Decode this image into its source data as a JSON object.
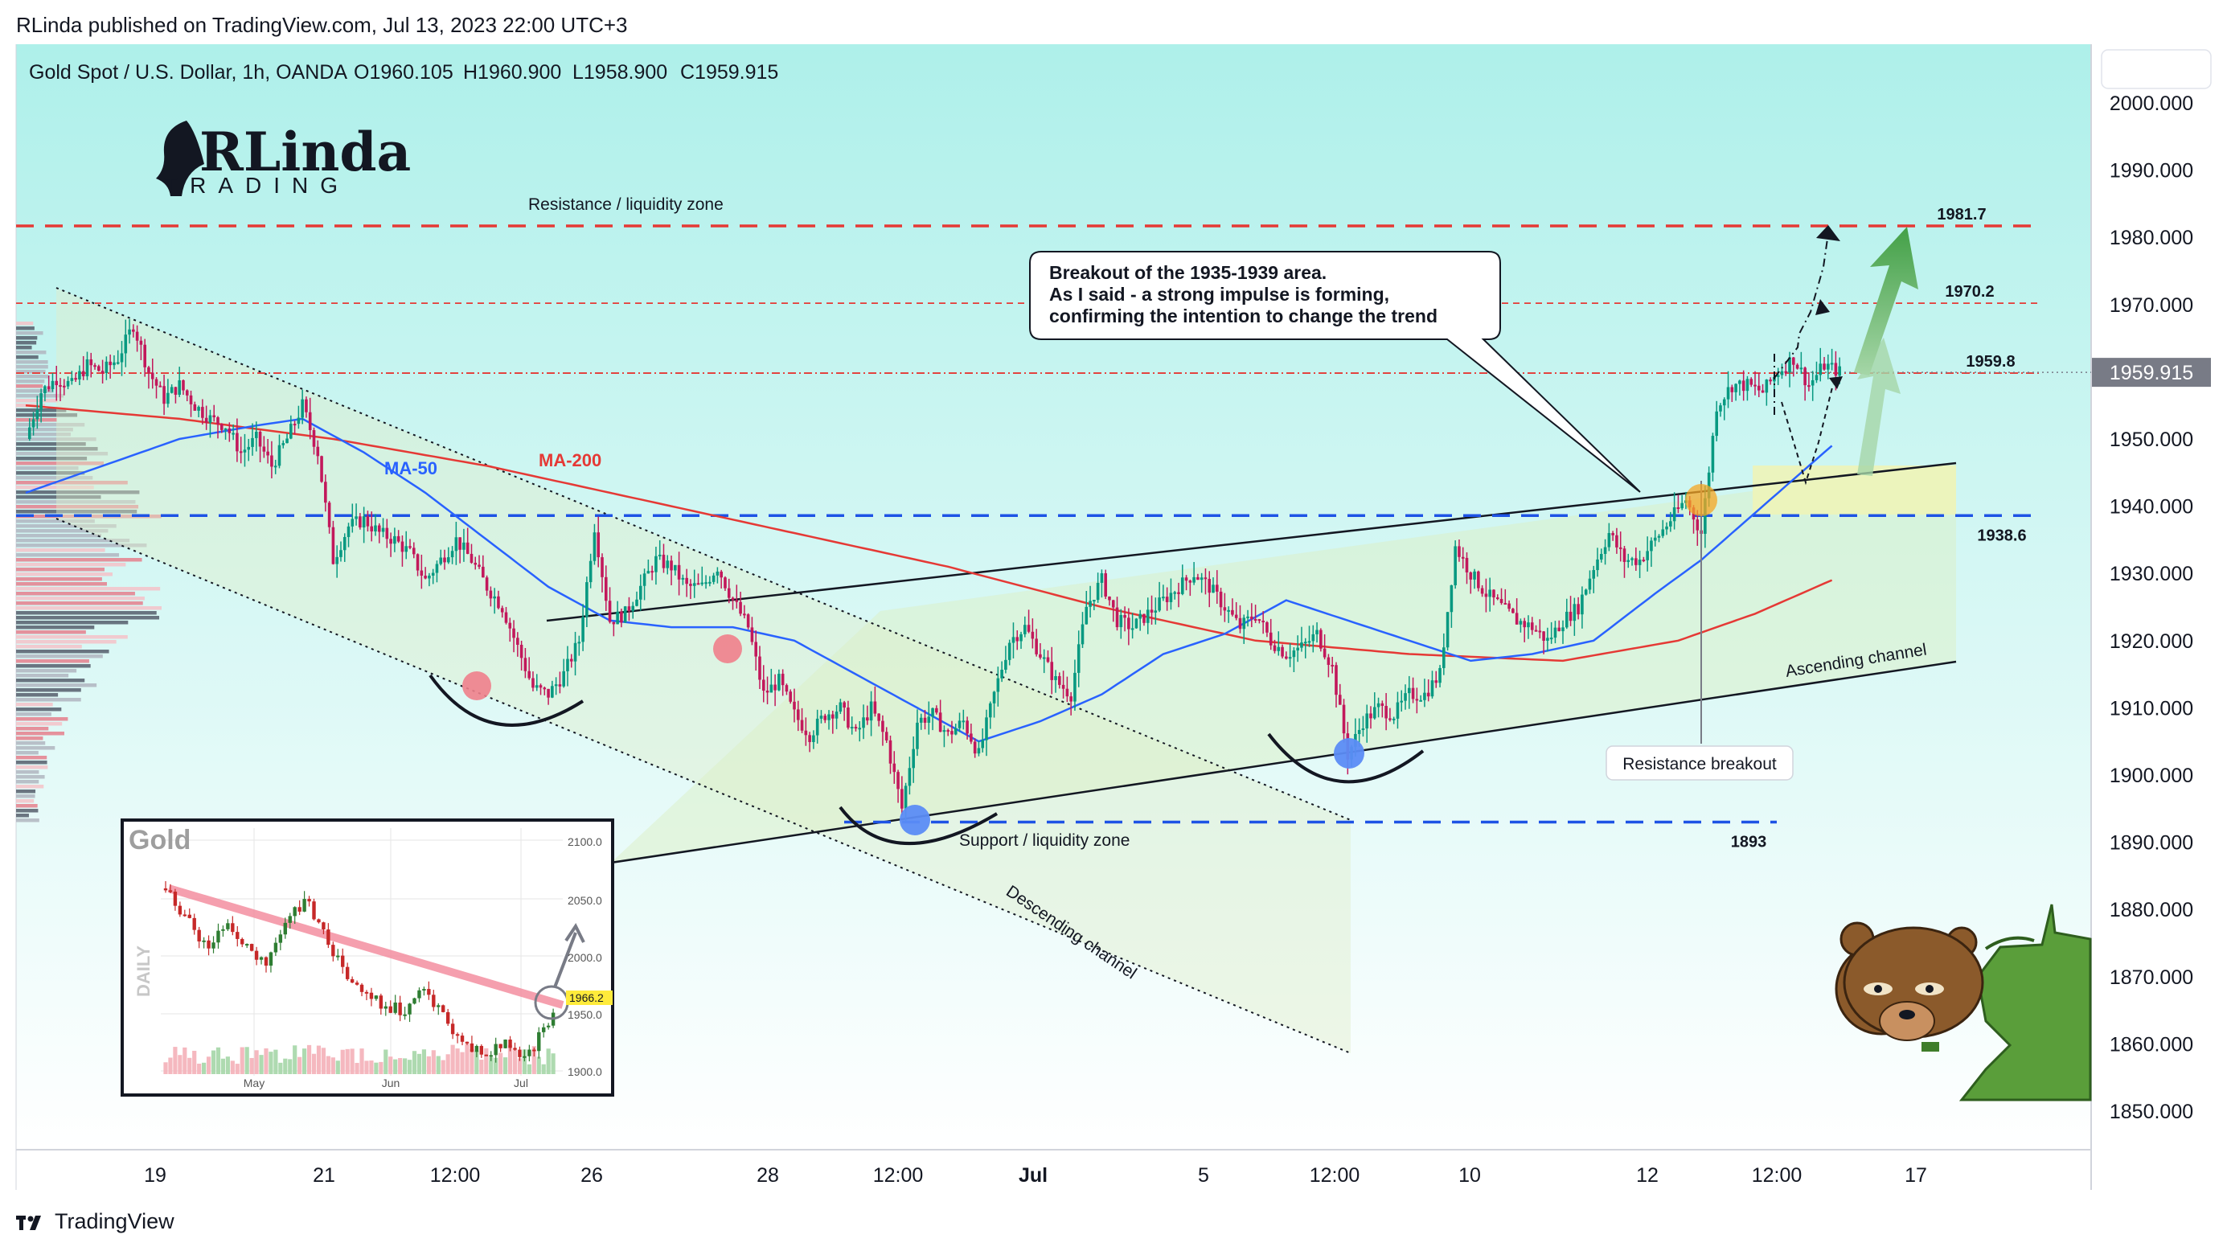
{
  "header": {
    "published": "RLinda published on TradingView.com, Jul 13, 2023 22:00 UTC+3"
  },
  "footer": {
    "brand": "TradingView",
    "logo_icon": "tradingview-logo-icon"
  },
  "symbol_line": {
    "name": "Gold Spot / U.S. Dollar, 1h, OANDA",
    "open": "O1960.105",
    "high": "H1960.900",
    "low": "L1958.900",
    "close": "C1959.915"
  },
  "logo": {
    "main": "RLinda",
    "sub": "TRADING",
    "icon": "woman-profile-logo-icon"
  },
  "price_tag": {
    "label": "1959.915",
    "value": 1959.915,
    "color": "#787b86"
  },
  "colors": {
    "background_top": "#aef0ea",
    "background_bottom": "#ffffff",
    "ma50": "#2962ff",
    "ma200": "#e53935",
    "resistance": "#e53935",
    "support": "#1e53e5",
    "candle_up": "#089981",
    "candle_down": "#c2185b",
    "arrow_green": "#4caf50"
  },
  "chart_data": {
    "type": "candlestick",
    "title": "Gold Spot / U.S. Dollar, 1h, OANDA",
    "y_ticks": [
      2000,
      1990,
      1980,
      1970,
      1960,
      1950,
      1940,
      1930,
      1920,
      1910,
      1900,
      1890,
      1880,
      1870,
      1860,
      1850
    ],
    "y_tick_labels": [
      "2000.000",
      "1990.000",
      "1980.000",
      "1970.000",
      "1960.000",
      "1950.000",
      "1940.000",
      "1930.000",
      "1920.000",
      "1910.000",
      "1900.000",
      "1890.000",
      "1880.000",
      "1870.000",
      "1860.000",
      "1850.000"
    ],
    "ylim": [
      1846,
      2005
    ],
    "x_ticks": [
      "19",
      "21",
      "12:00",
      "26",
      "28",
      "12:00",
      "Jul",
      "5",
      "12:00",
      "10",
      "12",
      "12:00",
      "17"
    ],
    "last_price": 1959.915,
    "series": [
      {
        "name": "MA-50",
        "color": "#2962ff"
      },
      {
        "name": "MA-200",
        "color": "#e53935"
      }
    ],
    "levels": [
      {
        "label": "1981.7",
        "value": 1981.7,
        "style": "dashed",
        "color": "#e53935"
      },
      {
        "label": "1970.2",
        "value": 1970.2,
        "style": "dashed-thin",
        "color": "#e53935"
      },
      {
        "label": "1959.8",
        "value": 1959.8,
        "style": "dash-dot",
        "color": "#e53935"
      },
      {
        "label": "1938.6",
        "value": 1938.6,
        "style": "dashed",
        "color": "#1e53e5"
      },
      {
        "label": "1893",
        "value": 1893,
        "style": "dashed",
        "color": "#1e53e5"
      }
    ],
    "annotations": {
      "resistance_zone": "Resistance / liquidity zone",
      "support_zone": "Support / liquidity zone",
      "ascending": "Ascending channel",
      "descending": "Descending channel",
      "breakout": "Resistance breakout",
      "callout": [
        "Breakout of the 1935-1939 area.",
        "As I said - a strong impulse is forming,",
        "confirming the intention to change the trend"
      ]
    },
    "ohlc_path": [
      [
        0,
        1950
      ],
      [
        4,
        1957
      ],
      [
        8,
        1959
      ],
      [
        12,
        1958
      ],
      [
        16,
        1961
      ],
      [
        20,
        1960
      ],
      [
        24,
        1962
      ],
      [
        28,
        1967
      ],
      [
        32,
        1960
      ],
      [
        36,
        1956
      ],
      [
        40,
        1958
      ],
      [
        44,
        1955
      ],
      [
        48,
        1953
      ],
      [
        52,
        1952
      ],
      [
        56,
        1948
      ],
      [
        60,
        1950
      ],
      [
        64,
        1946
      ],
      [
        68,
        1950
      ],
      [
        72,
        1955
      ],
      [
        76,
        1948
      ],
      [
        80,
        1932
      ],
      [
        84,
        1937
      ],
      [
        88,
        1938
      ],
      [
        92,
        1936
      ],
      [
        96,
        1935
      ],
      [
        100,
        1933
      ],
      [
        104,
        1929
      ],
      [
        108,
        1932
      ],
      [
        112,
        1935
      ],
      [
        116,
        1932
      ],
      [
        120,
        1928
      ],
      [
        124,
        1925
      ],
      [
        128,
        1919
      ],
      [
        132,
        1913
      ],
      [
        136,
        1912
      ],
      [
        140,
        1915
      ],
      [
        144,
        1920
      ],
      [
        148,
        1937
      ],
      [
        152,
        1923
      ],
      [
        156,
        1924
      ],
      [
        160,
        1928
      ],
      [
        164,
        1932
      ],
      [
        168,
        1931
      ],
      [
        172,
        1928
      ],
      [
        176,
        1928
      ],
      [
        180,
        1931
      ],
      [
        184,
        1926
      ],
      [
        188,
        1922
      ],
      [
        192,
        1912
      ],
      [
        196,
        1914
      ],
      [
        200,
        1909
      ],
      [
        204,
        1906
      ],
      [
        208,
        1909
      ],
      [
        212,
        1910
      ],
      [
        216,
        1906
      ],
      [
        220,
        1910
      ],
      [
        224,
        1905
      ],
      [
        228,
        1895
      ],
      [
        232,
        1908
      ],
      [
        236,
        1909
      ],
      [
        240,
        1906
      ],
      [
        244,
        1908
      ],
      [
        248,
        1903
      ],
      [
        252,
        1912
      ],
      [
        256,
        1920
      ],
      [
        260,
        1922
      ],
      [
        264,
        1918
      ],
      [
        268,
        1914
      ],
      [
        272,
        1912
      ],
      [
        276,
        1925
      ],
      [
        280,
        1929
      ],
      [
        284,
        1923
      ],
      [
        288,
        1922
      ],
      [
        292,
        1924
      ],
      [
        296,
        1926
      ],
      [
        300,
        1928
      ],
      [
        304,
        1930
      ],
      [
        308,
        1928
      ],
      [
        312,
        1925
      ],
      [
        316,
        1922
      ],
      [
        320,
        1924
      ],
      [
        324,
        1920
      ],
      [
        328,
        1918
      ],
      [
        332,
        1919
      ],
      [
        336,
        1921
      ],
      [
        340,
        1916
      ],
      [
        344,
        1903
      ],
      [
        348,
        1908
      ],
      [
        352,
        1910
      ],
      [
        356,
        1909
      ],
      [
        360,
        1912
      ],
      [
        364,
        1912
      ],
      [
        368,
        1915
      ],
      [
        372,
        1934
      ],
      [
        376,
        1930
      ],
      [
        380,
        1927
      ],
      [
        384,
        1925
      ],
      [
        388,
        1923
      ],
      [
        392,
        1922
      ],
      [
        396,
        1920
      ],
      [
        400,
        1923
      ],
      [
        404,
        1925
      ],
      [
        408,
        1931
      ],
      [
        412,
        1936
      ],
      [
        416,
        1932
      ],
      [
        420,
        1932
      ],
      [
        424,
        1935
      ],
      [
        428,
        1938
      ],
      [
        432,
        1941
      ],
      [
        436,
        1936
      ],
      [
        440,
        1955
      ],
      [
        444,
        1958
      ],
      [
        448,
        1958
      ],
      [
        452,
        1957
      ],
      [
        456,
        1960
      ],
      [
        460,
        1962
      ],
      [
        464,
        1958
      ],
      [
        468,
        1961
      ],
      [
        472,
        1960
      ]
    ],
    "ma50_path": [
      [
        0,
        1942
      ],
      [
        20,
        1946
      ],
      [
        40,
        1950
      ],
      [
        60,
        1952
      ],
      [
        72,
        1953
      ],
      [
        88,
        1948
      ],
      [
        104,
        1942
      ],
      [
        120,
        1935
      ],
      [
        136,
        1928
      ],
      [
        152,
        1923
      ],
      [
        168,
        1922
      ],
      [
        184,
        1922
      ],
      [
        200,
        1920
      ],
      [
        216,
        1915
      ],
      [
        232,
        1910
      ],
      [
        248,
        1905
      ],
      [
        264,
        1908
      ],
      [
        280,
        1912
      ],
      [
        296,
        1918
      ],
      [
        312,
        1921
      ],
      [
        328,
        1926
      ],
      [
        344,
        1923
      ],
      [
        360,
        1920
      ],
      [
        376,
        1917
      ],
      [
        392,
        1918
      ],
      [
        408,
        1920
      ],
      [
        424,
        1927
      ],
      [
        436,
        1932
      ],
      [
        448,
        1938
      ],
      [
        460,
        1944
      ],
      [
        470,
        1949
      ]
    ],
    "ma200_path": [
      [
        0,
        1955
      ],
      [
        40,
        1953
      ],
      [
        80,
        1950
      ],
      [
        120,
        1946
      ],
      [
        160,
        1941
      ],
      [
        200,
        1936
      ],
      [
        240,
        1931
      ],
      [
        280,
        1925
      ],
      [
        320,
        1920
      ],
      [
        360,
        1918
      ],
      [
        400,
        1917
      ],
      [
        430,
        1920
      ],
      [
        450,
        1924
      ],
      [
        470,
        1929
      ]
    ],
    "inset": {
      "title": "Gold",
      "side_label": "DAILY",
      "x_ticks": [
        "May",
        "Jun",
        "Jul"
      ],
      "y_ticks": [
        "2100.0",
        "2050.0",
        "2000.0",
        "1950.0",
        "1900.0"
      ],
      "price_tag": "1966.2"
    }
  }
}
